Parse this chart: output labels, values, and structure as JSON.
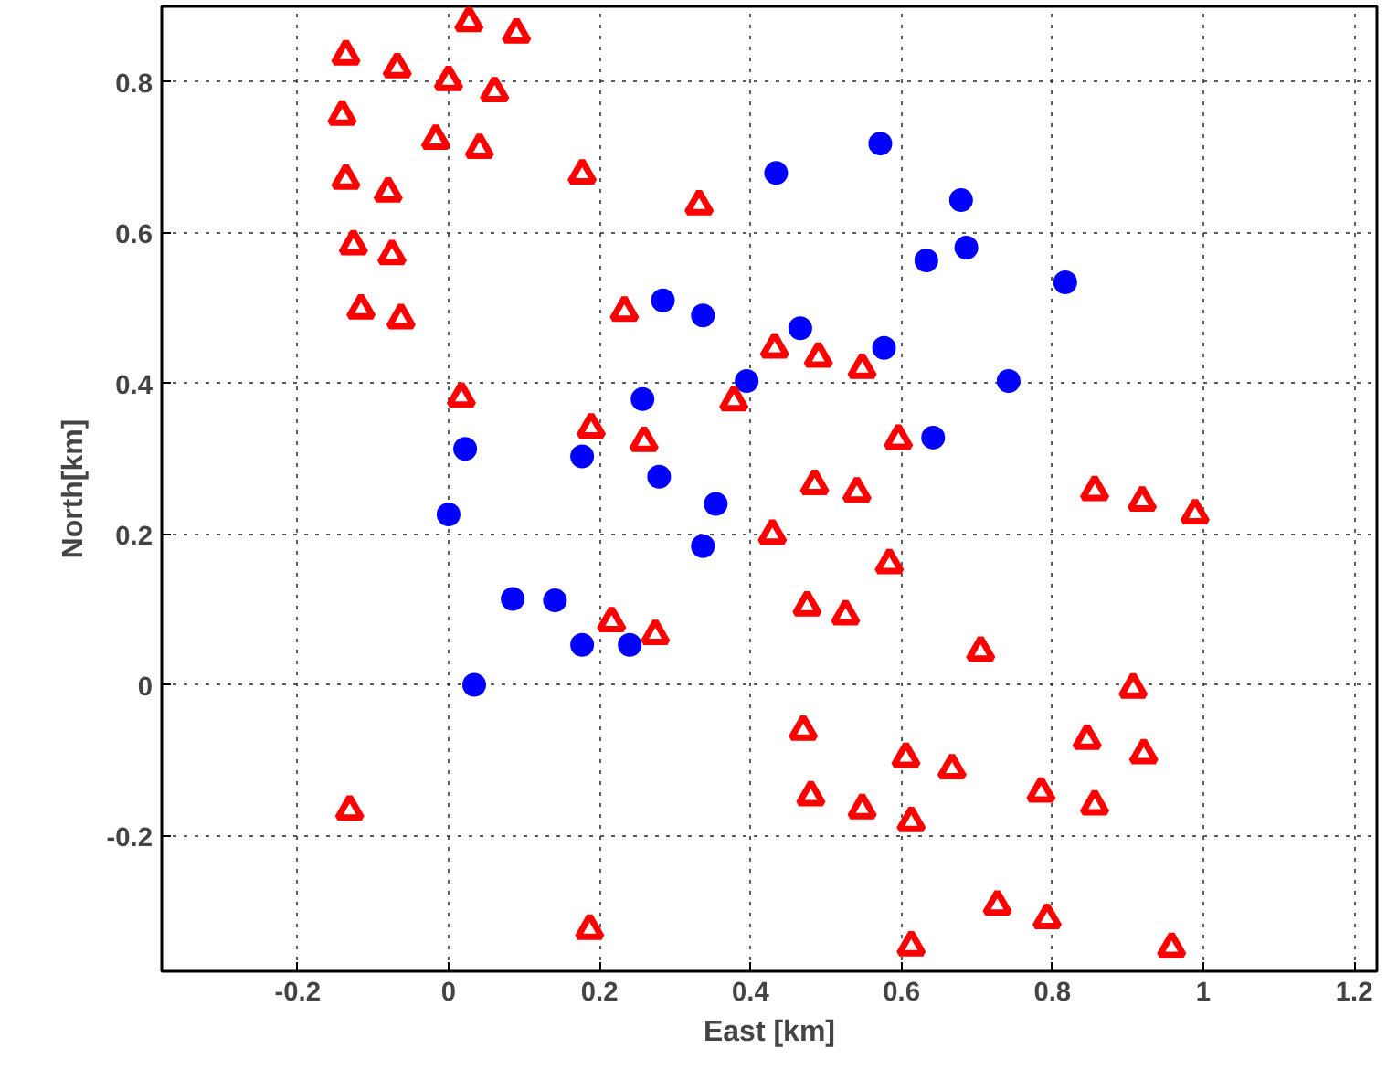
{
  "chart_data": {
    "type": "scatter",
    "xlabel": "East [km]",
    "ylabel": "North[km]",
    "xlim": [
      -0.38,
      1.23
    ],
    "ylim": [
      -0.38,
      0.9
    ],
    "xticks": [
      -0.2,
      0,
      0.2,
      0.4,
      0.6,
      0.8,
      1,
      1.2
    ],
    "yticks": [
      -0.2,
      0,
      0.2,
      0.4,
      0.6,
      0.8
    ],
    "grid": true,
    "series": [
      {
        "color": "#0000ff",
        "marker": "circle",
        "x": [
          0.572,
          0.434,
          0.679,
          0.686,
          0.633,
          0.817,
          0.284,
          0.337,
          0.466,
          0.577,
          0.395,
          0.742,
          0.257,
          0.642,
          0.022,
          0.177,
          0.279,
          0.354,
          0.0,
          0.337,
          0.085,
          0.141,
          0.177,
          0.24,
          0.034
        ],
        "values": [
          0.718,
          0.679,
          0.643,
          0.58,
          0.563,
          0.534,
          0.51,
          0.49,
          0.473,
          0.447,
          0.403,
          0.403,
          0.379,
          0.328,
          0.313,
          0.303,
          0.276,
          0.24,
          0.226,
          0.184,
          0.114,
          0.112,
          0.053,
          0.053,
          0.0
        ]
      },
      {
        "color": "#ff0000",
        "marker": "triangle",
        "x": [
          -0.136,
          0.027,
          0.09,
          -0.068,
          0,
          0.061,
          -0.141,
          -0.017,
          0.041,
          0.177,
          -0.136,
          -0.08,
          -0.126,
          -0.075,
          -0.116,
          -0.063,
          0.017,
          0.189,
          0.332,
          0.233,
          0.432,
          0.49,
          0.548,
          0.378,
          0.259,
          0.596,
          0.485,
          0.541,
          0.429,
          0.584,
          0.475,
          0.526,
          0.216,
          0.274,
          0.705,
          0.47,
          0.606,
          0.667,
          0.48,
          0.548,
          0.613,
          0.727,
          0.613,
          0.187,
          0.856,
          0.919,
          0.989,
          0.907,
          0.846,
          0.921,
          0.785,
          0.856,
          0.793,
          0.958,
          -0.131
        ],
        "values": [
          0.835,
          0.879,
          0.864,
          0.818,
          0.801,
          0.786,
          0.755,
          0.723,
          0.711,
          0.677,
          0.67,
          0.653,
          0.583,
          0.57,
          0.498,
          0.485,
          0.381,
          0.34,
          0.636,
          0.495,
          0.446,
          0.434,
          0.419,
          0.376,
          0.322,
          0.325,
          0.265,
          0.255,
          0.199,
          0.16,
          0.104,
          0.092,
          0.083,
          0.066,
          0.044,
          -0.061,
          -0.097,
          -0.112,
          -0.148,
          -0.165,
          -0.182,
          -0.293,
          -0.347,
          -0.325,
          0.257,
          0.243,
          0.226,
          -0.005,
          -0.073,
          -0.092,
          -0.143,
          -0.16,
          -0.311,
          -0.349,
          -0.167
        ]
      }
    ]
  }
}
